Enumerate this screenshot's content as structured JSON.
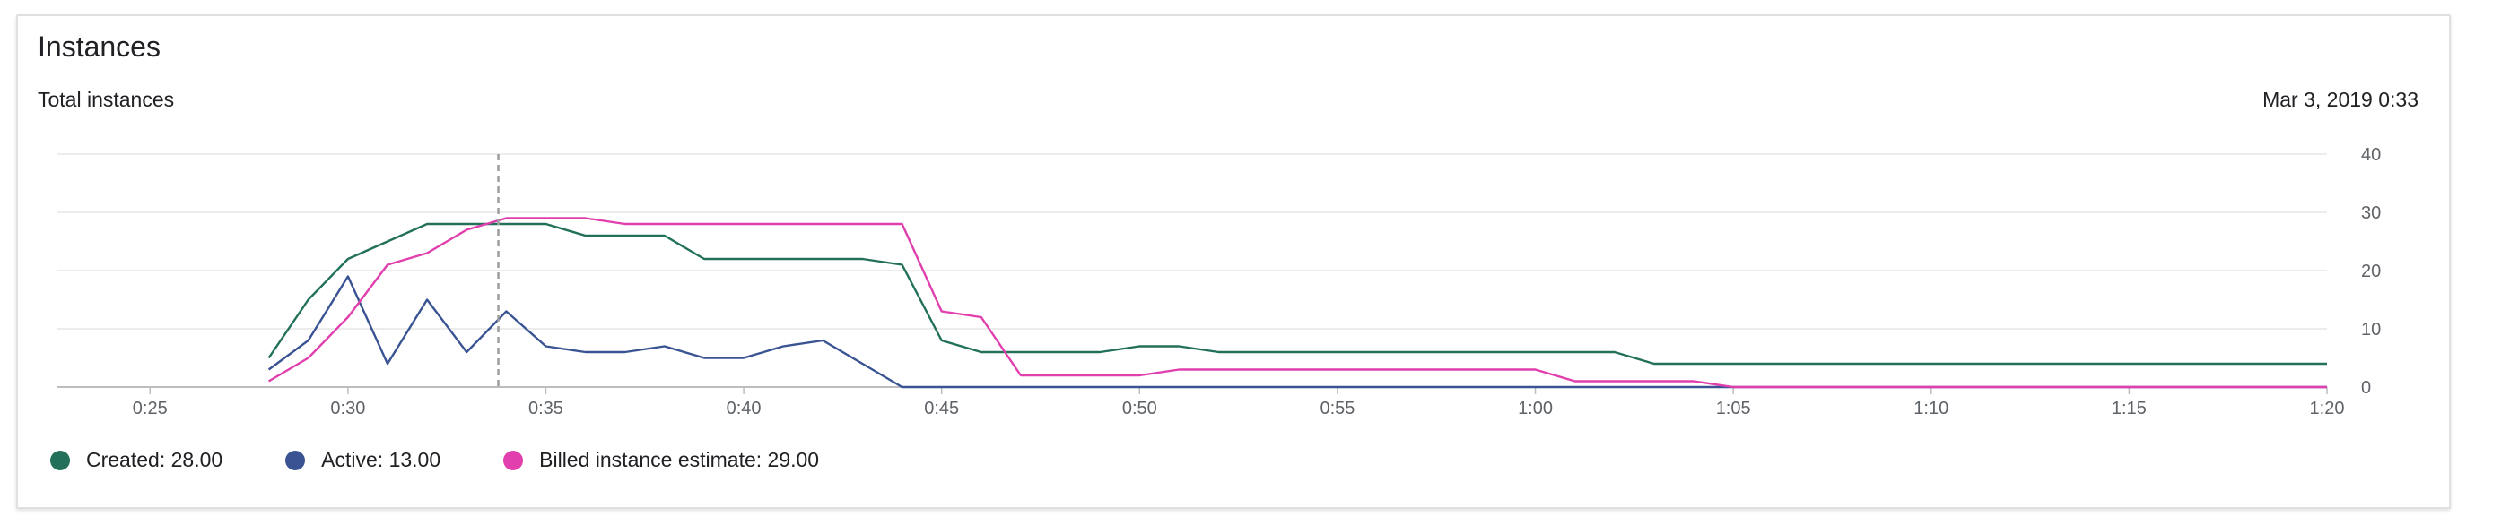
{
  "card": {
    "title": "Instances",
    "subtitle": "Total instances",
    "timestamp": "Mar 3, 2019 0:33"
  },
  "legend": [
    {
      "label": "Created: 28.00",
      "color": "#22705a"
    },
    {
      "label": "Active: 13.00",
      "color": "#3a5493"
    },
    {
      "label": "Billed instance estimate: 29.00",
      "color": "#e13fad"
    }
  ],
  "chart_data": {
    "type": "line",
    "title": "Total instances",
    "xlabel": "",
    "ylabel": "",
    "xlim": [
      20,
      80
    ],
    "ylim": [
      0,
      40
    ],
    "x_ticks": [
      25,
      30,
      35,
      40,
      45,
      50,
      55,
      60,
      65,
      70,
      75,
      80
    ],
    "x_tick_labels": [
      "0:25",
      "0:30",
      "0:35",
      "0:40",
      "0:45",
      "0:50",
      "0:55",
      "1:00",
      "1:05",
      "1:10",
      "1:15",
      "1:20"
    ],
    "y_ticks": [
      0,
      10,
      20,
      30,
      40
    ],
    "y_tick_labels": [
      "0",
      "10",
      "20",
      "30",
      "40"
    ],
    "grid": "horizontal",
    "y_axis_position": "right",
    "legend_position": "bottom-left",
    "cursor_x": 33.8,
    "series": [
      {
        "name": "Created",
        "color": "#22705a",
        "points": [
          [
            28,
            5
          ],
          [
            29,
            15
          ],
          [
            30,
            22
          ],
          [
            31,
            25
          ],
          [
            32,
            28
          ],
          [
            33,
            28
          ],
          [
            34,
            28
          ],
          [
            35,
            28
          ],
          [
            36,
            26
          ],
          [
            37,
            26
          ],
          [
            38,
            26
          ],
          [
            39,
            22
          ],
          [
            40,
            22
          ],
          [
            41,
            22
          ],
          [
            42,
            22
          ],
          [
            43,
            22
          ],
          [
            44,
            21
          ],
          [
            45,
            8
          ],
          [
            46,
            6
          ],
          [
            47,
            6
          ],
          [
            48,
            6
          ],
          [
            49,
            6
          ],
          [
            50,
            7
          ],
          [
            51,
            7
          ],
          [
            52,
            6
          ],
          [
            53,
            6
          ],
          [
            54,
            6
          ],
          [
            55,
            6
          ],
          [
            56,
            6
          ],
          [
            57,
            6
          ],
          [
            58,
            6
          ],
          [
            59,
            6
          ],
          [
            60,
            6
          ],
          [
            61,
            6
          ],
          [
            62,
            6
          ],
          [
            63,
            4
          ],
          [
            64,
            4
          ],
          [
            65,
            4
          ],
          [
            66,
            4
          ],
          [
            67,
            4
          ],
          [
            68,
            4
          ],
          [
            69,
            4
          ],
          [
            70,
            4
          ],
          [
            71,
            4
          ],
          [
            72,
            4
          ],
          [
            73,
            4
          ],
          [
            74,
            4
          ],
          [
            75,
            4
          ],
          [
            76,
            4
          ],
          [
            77,
            4
          ],
          [
            78,
            4
          ],
          [
            79,
            4
          ],
          [
            80,
            4
          ]
        ]
      },
      {
        "name": "Active",
        "color": "#3a5493",
        "points": [
          [
            28,
            3
          ],
          [
            29,
            8
          ],
          [
            30,
            19
          ],
          [
            31,
            4
          ],
          [
            32,
            15
          ],
          [
            33,
            6
          ],
          [
            34,
            13
          ],
          [
            35,
            7
          ],
          [
            36,
            6
          ],
          [
            37,
            6
          ],
          [
            38,
            7
          ],
          [
            39,
            5
          ],
          [
            40,
            5
          ],
          [
            41,
            7
          ],
          [
            42,
            8
          ],
          [
            43,
            4
          ],
          [
            44,
            0
          ],
          [
            45,
            0
          ],
          [
            50,
            0
          ],
          [
            55,
            0
          ],
          [
            60,
            0
          ],
          [
            65,
            0
          ],
          [
            70,
            0
          ],
          [
            75,
            0
          ],
          [
            80,
            0
          ]
        ]
      },
      {
        "name": "Billed instance estimate",
        "color": "#e13fad",
        "points": [
          [
            28,
            1
          ],
          [
            29,
            5
          ],
          [
            30,
            12
          ],
          [
            31,
            21
          ],
          [
            32,
            23
          ],
          [
            33,
            27
          ],
          [
            34,
            29
          ],
          [
            35,
            29
          ],
          [
            36,
            29
          ],
          [
            37,
            28
          ],
          [
            38,
            28
          ],
          [
            39,
            28
          ],
          [
            40,
            28
          ],
          [
            41,
            28
          ],
          [
            42,
            28
          ],
          [
            43,
            28
          ],
          [
            44,
            28
          ],
          [
            45,
            13
          ],
          [
            46,
            12
          ],
          [
            47,
            2
          ],
          [
            48,
            2
          ],
          [
            49,
            2
          ],
          [
            50,
            2
          ],
          [
            51,
            3
          ],
          [
            52,
            3
          ],
          [
            53,
            3
          ],
          [
            54,
            3
          ],
          [
            55,
            3
          ],
          [
            56,
            3
          ],
          [
            57,
            3
          ],
          [
            58,
            3
          ],
          [
            59,
            3
          ],
          [
            60,
            3
          ],
          [
            61,
            1
          ],
          [
            62,
            1
          ],
          [
            63,
            1
          ],
          [
            64,
            1
          ],
          [
            65,
            0
          ],
          [
            70,
            0
          ],
          [
            75,
            0
          ],
          [
            80,
            0
          ]
        ]
      }
    ]
  }
}
